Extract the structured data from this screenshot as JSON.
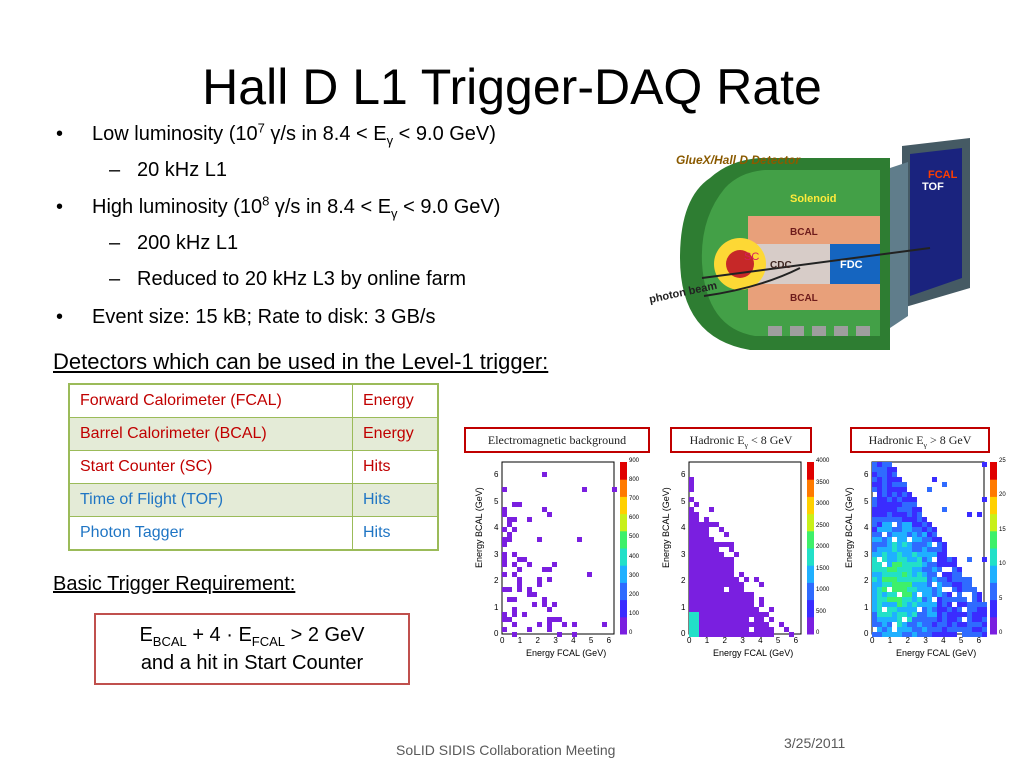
{
  "title": "Hall D L1 Trigger-DAQ Rate",
  "bullets": {
    "b1_pre": "Low luminosity (10",
    "b1_exp": "7",
    "b1_mid": " γ/s  in 8.4 < E",
    "b1_sub": "γ",
    "b1_post": " < 9.0 GeV)",
    "b1_sub1": "20 kHz L1",
    "b2_pre": "High luminosity (10",
    "b2_exp": "8",
    "b2_mid": " γ/s  in 8.4 < E",
    "b2_sub": "γ",
    "b2_post": " < 9.0 GeV)",
    "b2_sub1": "200 kHz L1",
    "b2_sub2": "Reduced to 20 kHz L3 by online farm",
    "b3": "Event size: 15 kB; Rate to disk: 3 GB/s",
    "bullet_mark": "•",
    "dash_mark": "–"
  },
  "detector": {
    "title": "GlueX/Hall D Detector",
    "labels": [
      "Solenoid",
      "BCAL",
      "CDC",
      "BCAL",
      "FDC",
      "FCAL",
      "TOF",
      "SC",
      "photon beam"
    ]
  },
  "detectors_heading": "Detectors which can be used in the Level-1 trigger:",
  "table": {
    "rows": [
      {
        "name": "Forward Calorimeter (FCAL)",
        "type": "Energy",
        "color": "#c00000"
      },
      {
        "name": "Barrel Calorimeter (BCAL)",
        "type": "Energy",
        "color": "#c00000"
      },
      {
        "name": "Start Counter (SC)",
        "type": "Hits",
        "color": "#c00000"
      },
      {
        "name": "Time of Flight (TOF)",
        "type": "Hits",
        "color": "#1f75c4"
      },
      {
        "name": "Photon Tagger",
        "type": "Hits",
        "color": "#1f75c4"
      }
    ]
  },
  "req_heading": "Basic Trigger Requirement:",
  "requirement": {
    "e": "E",
    "bcal": "BCAL",
    "mid": " + 4 · E",
    "fcal": "FCAL",
    "post": " > 2 GeV",
    "line2": "and a hit in Start Counter"
  },
  "plots": {
    "labels": [
      "Electromagnetic background",
      "Hadronic E",
      "Hadronic E"
    ],
    "label2_sub": "γ",
    "label2_post": " < 8 GeV",
    "label3_sub": "γ",
    "label3_post": " > 8 GeV",
    "xlabel": "Energy FCAL  (GeV)",
    "ylabel": "Energy BCAL  (GeV)",
    "ticks": [
      "0",
      "1",
      "2",
      "3",
      "4",
      "5",
      "6"
    ],
    "scale1": [
      "900",
      "800",
      "700",
      "600",
      "500",
      "400",
      "300",
      "200",
      "100",
      "0"
    ],
    "scale2": [
      "4000",
      "3500",
      "3000",
      "2500",
      "2000",
      "1500",
      "1000",
      "500",
      "0"
    ],
    "scale3": [
      "25",
      "20",
      "15",
      "10",
      "5",
      "0"
    ]
  },
  "chart_data": [
    {
      "type": "heatmap",
      "title": "",
      "xlabel": "Energy FCAL  (GeV)",
      "ylabel": "Energy BCAL  (GeV)",
      "xlim": [
        0,
        6.3
      ],
      "ylim": [
        0,
        6.5
      ],
      "colorbar": [
        0,
        900
      ],
      "description_values": "electromagnetic background: sparse, concentrated at low FCAL energy"
    },
    {
      "type": "heatmap",
      "title": "",
      "xlabel": "Energy FCAL  (GeV)",
      "ylabel": "Energy BCAL  (GeV)",
      "xlim": [
        0,
        6.3
      ],
      "ylim": [
        0,
        6.5
      ],
      "colorbar": [
        0,
        4000
      ],
      "description_values": "hadronic E<8 GeV: dense triangle below sum ~5 GeV"
    },
    {
      "type": "heatmap",
      "title": "",
      "xlabel": "Energy FCAL  (GeV)",
      "ylabel": "Energy BCAL  (GeV)",
      "xlim": [
        0,
        6.3
      ],
      "ylim": [
        0,
        6.5
      ],
      "colorbar": [
        0,
        25
      ],
      "description_values": "hadronic E>8 GeV: broad dense distribution"
    }
  ],
  "footer": "SoLID SIDIS Collaboration Meeting",
  "date": "3/25/2011"
}
